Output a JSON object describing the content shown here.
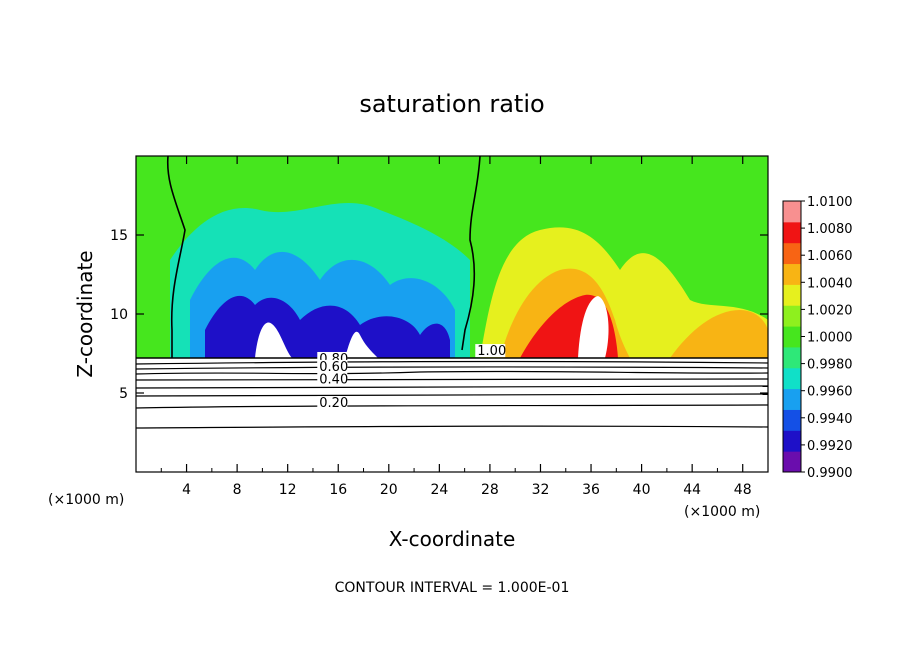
{
  "chart_data": {
    "type": "heatmap",
    "title": "saturation ratio",
    "xlabel": "X-coordinate",
    "ylabel": "Z-coordinate",
    "x_unit": "(×1000 m)",
    "xlim": [
      0,
      50
    ],
    "ylim": [
      0,
      20
    ],
    "x_ticks": [
      4,
      8,
      12,
      16,
      20,
      24,
      28,
      32,
      36,
      40,
      44,
      48
    ],
    "y_ticks": [
      5,
      10,
      15
    ],
    "footer": "CONTOUR INTERVAL = 1.000E-01",
    "colorbar": {
      "levels": [
        "0.9900",
        "0.9920",
        "0.9940",
        "0.9960",
        "0.9980",
        "1.0000",
        "1.0020",
        "1.0040",
        "1.0060",
        "1.0080",
        "1.0100"
      ],
      "colors": [
        "#6a0dad",
        "#1e10c8",
        "#1450e6",
        "#18a0f0",
        "#10e0c8",
        "#2ee878",
        "#46e61e",
        "#8ef01e",
        "#e6f01e",
        "#f8b414",
        "#f86414",
        "#f01414",
        "#f89090"
      ]
    },
    "contour_labels": [
      {
        "text": "1.00",
        "x": 27,
        "z": 7.4
      },
      {
        "text": "0.80",
        "x": 14.5,
        "z": 6.9
      },
      {
        "text": "0.60",
        "x": 14.5,
        "z": 6.4
      },
      {
        "text": "0.40",
        "x": 14.5,
        "z": 5.6
      },
      {
        "text": "0.20",
        "x": 14.5,
        "z": 4.1
      }
    ]
  }
}
